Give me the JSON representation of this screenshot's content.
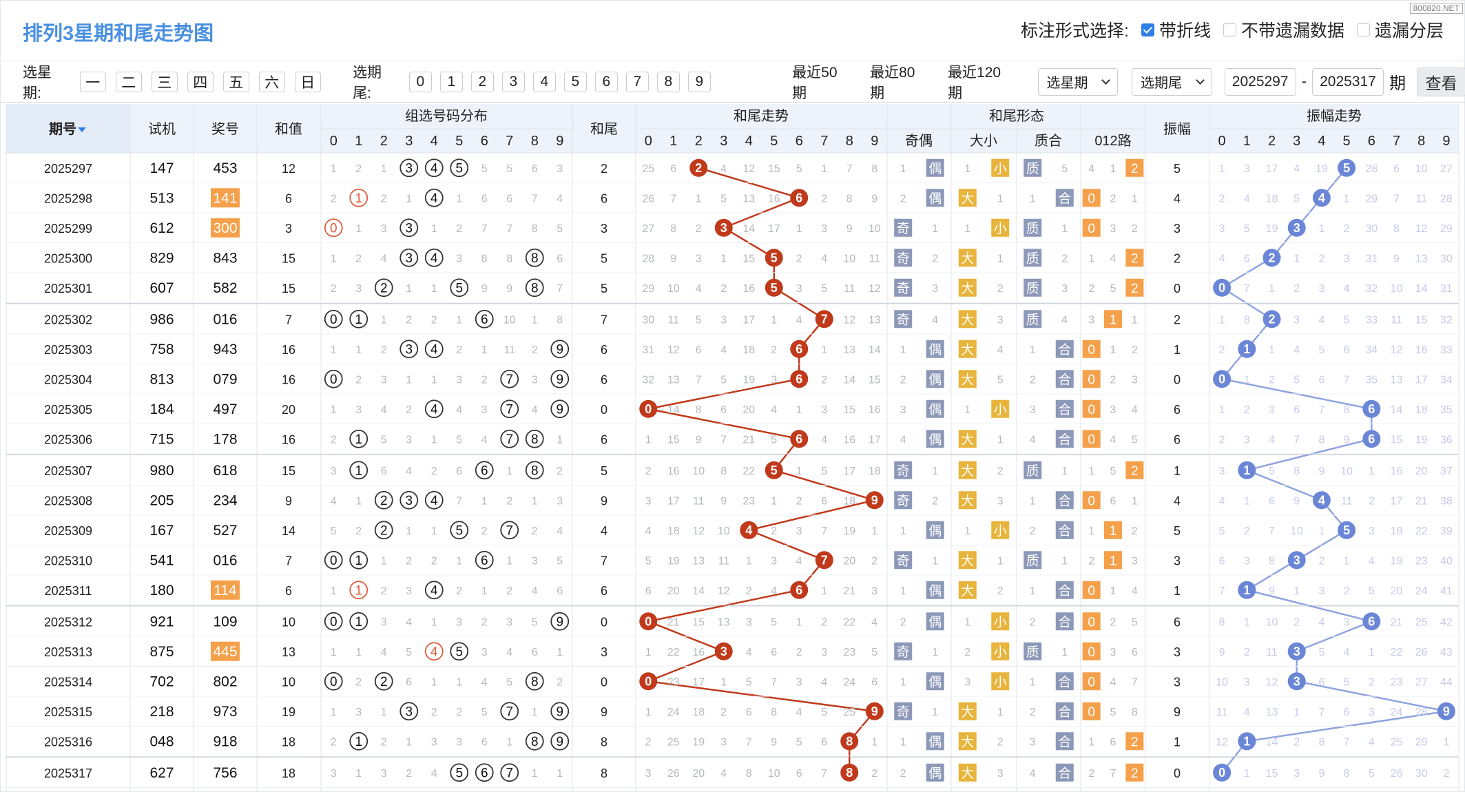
{
  "title": "排列3星期和尾走势图",
  "watermark": "800820.NET",
  "options": {
    "label": "标注形式选择:",
    "items": [
      {
        "label": "带折线",
        "checked": true
      },
      {
        "label": "不带遗漏数据",
        "checked": false
      },
      {
        "label": "遗漏分层",
        "checked": false
      }
    ]
  },
  "filters": {
    "week_label": "选星期:",
    "weekdays": [
      "一",
      "二",
      "三",
      "四",
      "五",
      "六",
      "日"
    ],
    "tail_label": "选期尾:",
    "tails": [
      "0",
      "1",
      "2",
      "3",
      "4",
      "5",
      "6",
      "7",
      "8",
      "9"
    ],
    "ranges": [
      "最近50期",
      "最近80期",
      "最近120期"
    ],
    "select_week": "选星期",
    "select_tail": "选期尾",
    "from": "2025297",
    "sep": "-",
    "to": "2025317",
    "unit": "期",
    "query": "查看"
  },
  "headers": {
    "period": "期号",
    "trial": "试机",
    "award": "奖号",
    "sum": "和值",
    "group_dist": "组选号码分布",
    "tail": "和尾",
    "tail_trend": "和尾走势",
    "tail_form": "和尾形态",
    "oddeven": "奇偶",
    "bigsmall": "大小",
    "prime": "质合",
    "r012": "012路",
    "amp": "振幅",
    "amp_trend": "振幅走势",
    "digits": [
      "0",
      "1",
      "2",
      "3",
      "4",
      "5",
      "6",
      "7",
      "8",
      "9"
    ]
  },
  "labels": {
    "odd": "奇",
    "even": "偶",
    "big": "大",
    "small": "小",
    "prime": "质",
    "comp": "合",
    "r0": "0",
    "r1": "1",
    "r2": "2"
  },
  "colors": {
    "red": "#c0391b",
    "blue": "#6b86d6",
    "orange": "#f5a04a",
    "header_bg": "#eef3fb",
    "line": "#c0391b",
    "line_blue": "#8fa3e0"
  },
  "rows": [
    {
      "p": "2025297",
      "t": "147",
      "a": "453",
      "s": "12",
      "d": [
        "1",
        "2",
        "1",
        "●",
        "●",
        "●",
        "5",
        "5",
        "6",
        "3"
      ],
      "w": "2",
      "tr": [
        "25",
        "6",
        "●",
        "4",
        "12",
        "15",
        "5",
        "1",
        "7",
        "8"
      ],
      "oe": [
        "1",
        "偶"
      ],
      "bs": [
        "1",
        "小"
      ],
      "pc": [
        "质",
        "5"
      ],
      "r": [
        "4",
        "1",
        "2"
      ],
      "amp": "5",
      "at": [
        "1",
        "3",
        "17",
        "4",
        "19",
        "●",
        "28",
        "6",
        "10",
        "27"
      ]
    },
    {
      "p": "2025298",
      "t": "513",
      "a": "141",
      "s": "6",
      "d": [
        "2",
        "●",
        "2",
        "1",
        "●",
        "1",
        "6",
        "6",
        "7",
        "4"
      ],
      "w": "6",
      "tr": [
        "26",
        "7",
        "1",
        "5",
        "13",
        "16",
        "●",
        "2",
        "8",
        "9"
      ],
      "oe": [
        "2",
        "偶"
      ],
      "bs": [
        "大",
        "1"
      ],
      "pc": [
        "1",
        "合"
      ],
      "r": [
        "0",
        "2",
        "1"
      ],
      "amp": "4",
      "at": [
        "2",
        "4",
        "18",
        "5",
        "●",
        "1",
        "29",
        "7",
        "11",
        "28"
      ]
    },
    {
      "p": "2025299",
      "t": "612",
      "a": "300",
      "s": "3",
      "d": [
        "●",
        "1",
        "3",
        "●",
        "1",
        "2",
        "7",
        "7",
        "8",
        "5"
      ],
      "w": "3",
      "tr": [
        "27",
        "8",
        "2",
        "●",
        "14",
        "17",
        "1",
        "3",
        "9",
        "10"
      ],
      "oe": [
        "奇",
        "1"
      ],
      "bs": [
        "1",
        "小"
      ],
      "pc": [
        "质",
        "1"
      ],
      "r": [
        "0",
        "3",
        "2"
      ],
      "amp": "3",
      "at": [
        "3",
        "5",
        "19",
        "●",
        "1",
        "2",
        "30",
        "8",
        "12",
        "29"
      ]
    },
    {
      "p": "2025300",
      "t": "829",
      "a": "843",
      "s": "15",
      "d": [
        "1",
        "2",
        "4",
        "●",
        "●",
        "3",
        "8",
        "8",
        "●",
        "6"
      ],
      "w": "5",
      "tr": [
        "28",
        "9",
        "3",
        "1",
        "15",
        "●",
        "2",
        "4",
        "10",
        "11"
      ],
      "oe": [
        "奇",
        "2"
      ],
      "bs": [
        "大",
        "1"
      ],
      "pc": [
        "质",
        "2"
      ],
      "r": [
        "1",
        "4",
        "2"
      ],
      "amp": "2",
      "at": [
        "4",
        "6",
        "●",
        "1",
        "2",
        "3",
        "31",
        "9",
        "13",
        "30"
      ]
    },
    {
      "p": "2025301",
      "t": "607",
      "a": "582",
      "s": "15",
      "d": [
        "2",
        "3",
        "●",
        "1",
        "1",
        "●",
        "9",
        "9",
        "●",
        "7"
      ],
      "w": "5",
      "tr": [
        "29",
        "10",
        "4",
        "2",
        "16",
        "●",
        "3",
        "5",
        "11",
        "12"
      ],
      "oe": [
        "奇",
        "3"
      ],
      "bs": [
        "大",
        "2"
      ],
      "pc": [
        "质",
        "3"
      ],
      "r": [
        "2",
        "5",
        "2"
      ],
      "amp": "0",
      "at": [
        "●",
        "7",
        "1",
        "2",
        "3",
        "4",
        "32",
        "10",
        "14",
        "31"
      ]
    },
    {
      "p": "2025302",
      "t": "986",
      "a": "016",
      "s": "7",
      "d": [
        "●",
        "●",
        "1",
        "2",
        "2",
        "1",
        "●",
        "10",
        "1",
        "8"
      ],
      "w": "7",
      "tr": [
        "30",
        "11",
        "5",
        "3",
        "17",
        "1",
        "4",
        "●",
        "12",
        "13"
      ],
      "oe": [
        "奇",
        "4"
      ],
      "bs": [
        "大",
        "3"
      ],
      "pc": [
        "质",
        "4"
      ],
      "r": [
        "3",
        "1",
        "1"
      ],
      "amp": "2",
      "at": [
        "1",
        "8",
        "●",
        "3",
        "4",
        "5",
        "33",
        "11",
        "15",
        "32"
      ]
    },
    {
      "p": "2025303",
      "t": "758",
      "a": "943",
      "s": "16",
      "d": [
        "1",
        "1",
        "2",
        "●",
        "●",
        "2",
        "1",
        "11",
        "2",
        "●"
      ],
      "w": "6",
      "tr": [
        "31",
        "12",
        "6",
        "4",
        "18",
        "2",
        "●",
        "1",
        "13",
        "14"
      ],
      "oe": [
        "1",
        "偶"
      ],
      "bs": [
        "大",
        "4"
      ],
      "pc": [
        "1",
        "合"
      ],
      "r": [
        "0",
        "1",
        "2"
      ],
      "amp": "1",
      "at": [
        "2",
        "●",
        "1",
        "4",
        "5",
        "6",
        "34",
        "12",
        "16",
        "33"
      ]
    },
    {
      "p": "2025304",
      "t": "813",
      "a": "079",
      "s": "16",
      "d": [
        "●",
        "2",
        "3",
        "1",
        "1",
        "3",
        "2",
        "●",
        "3",
        "●"
      ],
      "w": "6",
      "tr": [
        "32",
        "13",
        "7",
        "5",
        "19",
        "3",
        "●",
        "2",
        "14",
        "15"
      ],
      "oe": [
        "2",
        "偶"
      ],
      "bs": [
        "大",
        "5"
      ],
      "pc": [
        "2",
        "合"
      ],
      "r": [
        "0",
        "2",
        "3"
      ],
      "amp": "0",
      "at": [
        "●",
        "1",
        "2",
        "5",
        "6",
        "7",
        "35",
        "13",
        "17",
        "34"
      ]
    },
    {
      "p": "2025305",
      "t": "184",
      "a": "497",
      "s": "20",
      "d": [
        "1",
        "3",
        "4",
        "2",
        "●",
        "4",
        "3",
        "●",
        "4",
        "●"
      ],
      "w": "0",
      "tr": [
        "●",
        "14",
        "8",
        "6",
        "20",
        "4",
        "1",
        "3",
        "15",
        "16"
      ],
      "oe": [
        "3",
        "偶"
      ],
      "bs": [
        "1",
        "小"
      ],
      "pc": [
        "3",
        "合"
      ],
      "r": [
        "0",
        "3",
        "4"
      ],
      "amp": "6",
      "at": [
        "1",
        "2",
        "3",
        "6",
        "7",
        "8",
        "●",
        "14",
        "18",
        "35"
      ]
    },
    {
      "p": "2025306",
      "t": "715",
      "a": "178",
      "s": "16",
      "d": [
        "2",
        "●",
        "5",
        "3",
        "1",
        "5",
        "4",
        "●",
        "●",
        "1"
      ],
      "w": "6",
      "tr": [
        "1",
        "15",
        "9",
        "7",
        "21",
        "5",
        "●",
        "4",
        "16",
        "17"
      ],
      "oe": [
        "4",
        "偶"
      ],
      "bs": [
        "大",
        "1"
      ],
      "pc": [
        "4",
        "合"
      ],
      "r": [
        "0",
        "4",
        "5"
      ],
      "amp": "6",
      "at": [
        "2",
        "3",
        "4",
        "7",
        "8",
        "9",
        "●",
        "15",
        "19",
        "36"
      ]
    },
    {
      "p": "2025307",
      "t": "980",
      "a": "618",
      "s": "15",
      "d": [
        "3",
        "●",
        "6",
        "4",
        "2",
        "6",
        "●",
        "1",
        "●",
        "2"
      ],
      "w": "5",
      "tr": [
        "2",
        "16",
        "10",
        "8",
        "22",
        "●",
        "1",
        "5",
        "17",
        "18"
      ],
      "oe": [
        "奇",
        "1"
      ],
      "bs": [
        "大",
        "2"
      ],
      "pc": [
        "质",
        "1"
      ],
      "r": [
        "1",
        "5",
        "2"
      ],
      "amp": "1",
      "at": [
        "3",
        "●",
        "5",
        "8",
        "9",
        "10",
        "1",
        "16",
        "20",
        "37"
      ]
    },
    {
      "p": "2025308",
      "t": "205",
      "a": "234",
      "s": "9",
      "d": [
        "4",
        "1",
        "●",
        "●",
        "●",
        "7",
        "1",
        "2",
        "1",
        "3"
      ],
      "w": "9",
      "tr": [
        "3",
        "17",
        "11",
        "9",
        "23",
        "1",
        "2",
        "6",
        "18",
        "●"
      ],
      "oe": [
        "奇",
        "2"
      ],
      "bs": [
        "大",
        "3"
      ],
      "pc": [
        "1",
        "合"
      ],
      "r": [
        "0",
        "6",
        "1"
      ],
      "amp": "4",
      "at": [
        "4",
        "1",
        "6",
        "9",
        "●",
        "11",
        "2",
        "17",
        "21",
        "38"
      ]
    },
    {
      "p": "2025309",
      "t": "167",
      "a": "527",
      "s": "14",
      "d": [
        "5",
        "2",
        "●",
        "1",
        "1",
        "●",
        "2",
        "●",
        "2",
        "4"
      ],
      "w": "4",
      "tr": [
        "4",
        "18",
        "12",
        "10",
        "●",
        "2",
        "3",
        "7",
        "19",
        "1"
      ],
      "oe": [
        "1",
        "偶"
      ],
      "bs": [
        "1",
        "小"
      ],
      "pc": [
        "2",
        "合"
      ],
      "r": [
        "1",
        "1",
        "2"
      ],
      "amp": "5",
      "at": [
        "5",
        "2",
        "7",
        "10",
        "1",
        "●",
        "3",
        "18",
        "22",
        "39"
      ]
    },
    {
      "p": "2025310",
      "t": "541",
      "a": "016",
      "s": "7",
      "d": [
        "●",
        "●",
        "1",
        "2",
        "2",
        "1",
        "●",
        "1",
        "3",
        "5"
      ],
      "w": "7",
      "tr": [
        "5",
        "19",
        "13",
        "11",
        "1",
        "3",
        "4",
        "●",
        "20",
        "2"
      ],
      "oe": [
        "奇",
        "1"
      ],
      "bs": [
        "大",
        "1"
      ],
      "pc": [
        "质",
        "1"
      ],
      "r": [
        "2",
        "1",
        "3"
      ],
      "amp": "3",
      "at": [
        "6",
        "3",
        "8",
        "●",
        "2",
        "1",
        "4",
        "19",
        "23",
        "40"
      ]
    },
    {
      "p": "2025311",
      "t": "180",
      "a": "114",
      "s": "6",
      "d": [
        "1",
        "●",
        "2",
        "3",
        "●",
        "2",
        "1",
        "2",
        "4",
        "6"
      ],
      "w": "6",
      "tr": [
        "6",
        "20",
        "14",
        "12",
        "2",
        "4",
        "●",
        "1",
        "21",
        "3"
      ],
      "oe": [
        "1",
        "偶"
      ],
      "bs": [
        "大",
        "2"
      ],
      "pc": [
        "1",
        "合"
      ],
      "r": [
        "0",
        "1",
        "4"
      ],
      "amp": "1",
      "at": [
        "7",
        "●",
        "9",
        "1",
        "3",
        "2",
        "5",
        "20",
        "24",
        "41"
      ]
    },
    {
      "p": "2025312",
      "t": "921",
      "a": "109",
      "s": "10",
      "d": [
        "●",
        "●",
        "3",
        "4",
        "1",
        "3",
        "2",
        "3",
        "5",
        "●"
      ],
      "w": "0",
      "tr": [
        "●",
        "21",
        "15",
        "13",
        "3",
        "5",
        "1",
        "2",
        "22",
        "4"
      ],
      "oe": [
        "2",
        "偶"
      ],
      "bs": [
        "1",
        "小"
      ],
      "pc": [
        "2",
        "合"
      ],
      "r": [
        "0",
        "2",
        "5"
      ],
      "amp": "6",
      "at": [
        "8",
        "1",
        "10",
        "2",
        "4",
        "3",
        "●",
        "21",
        "25",
        "42"
      ]
    },
    {
      "p": "2025313",
      "t": "875",
      "a": "445",
      "s": "13",
      "d": [
        "1",
        "1",
        "4",
        "5",
        "●",
        "●",
        "3",
        "4",
        "6",
        "1"
      ],
      "w": "3",
      "tr": [
        "1",
        "22",
        "16",
        "●",
        "4",
        "6",
        "2",
        "3",
        "23",
        "5"
      ],
      "oe": [
        "奇",
        "1"
      ],
      "bs": [
        "2",
        "小"
      ],
      "pc": [
        "质",
        "1"
      ],
      "r": [
        "0",
        "3",
        "6"
      ],
      "amp": "3",
      "at": [
        "9",
        "2",
        "11",
        "●",
        "5",
        "4",
        "1",
        "22",
        "26",
        "43"
      ]
    },
    {
      "p": "2025314",
      "t": "702",
      "a": "802",
      "s": "10",
      "d": [
        "●",
        "2",
        "●",
        "6",
        "1",
        "1",
        "4",
        "5",
        "●",
        "2"
      ],
      "w": "0",
      "tr": [
        "●",
        "23",
        "17",
        "1",
        "5",
        "7",
        "3",
        "4",
        "24",
        "6"
      ],
      "oe": [
        "1",
        "偶"
      ],
      "bs": [
        "3",
        "小"
      ],
      "pc": [
        "1",
        "合"
      ],
      "r": [
        "0",
        "4",
        "7"
      ],
      "amp": "3",
      "at": [
        "10",
        "3",
        "12",
        "●",
        "6",
        "5",
        "2",
        "23",
        "27",
        "44"
      ]
    },
    {
      "p": "2025315",
      "t": "218",
      "a": "973",
      "s": "19",
      "d": [
        "1",
        "3",
        "1",
        "●",
        "2",
        "2",
        "5",
        "●",
        "1",
        "●"
      ],
      "w": "9",
      "tr": [
        "1",
        "24",
        "18",
        "2",
        "6",
        "8",
        "4",
        "5",
        "25",
        "●"
      ],
      "oe": [
        "奇",
        "1"
      ],
      "bs": [
        "大",
        "1"
      ],
      "pc": [
        "2",
        "合"
      ],
      "r": [
        "0",
        "5",
        "8"
      ],
      "amp": "9",
      "at": [
        "11",
        "4",
        "13",
        "1",
        "7",
        "6",
        "3",
        "24",
        "28",
        "●"
      ]
    },
    {
      "p": "2025316",
      "t": "048",
      "a": "918",
      "s": "18",
      "d": [
        "2",
        "●",
        "2",
        "1",
        "3",
        "3",
        "6",
        "1",
        "●",
        "●"
      ],
      "w": "8",
      "tr": [
        "2",
        "25",
        "19",
        "3",
        "7",
        "9",
        "5",
        "6",
        "●",
        "1"
      ],
      "oe": [
        "1",
        "偶"
      ],
      "bs": [
        "大",
        "2"
      ],
      "pc": [
        "3",
        "合"
      ],
      "r": [
        "1",
        "6",
        "2"
      ],
      "amp": "1",
      "at": [
        "12",
        "●",
        "14",
        "2",
        "8",
        "7",
        "4",
        "25",
        "29",
        "1"
      ]
    },
    {
      "p": "2025317",
      "t": "627",
      "a": "756",
      "s": "18",
      "d": [
        "3",
        "1",
        "3",
        "2",
        "4",
        "●",
        "●",
        "●",
        "1",
        "1"
      ],
      "w": "8",
      "tr": [
        "3",
        "26",
        "20",
        "4",
        "8",
        "10",
        "6",
        "7",
        "●",
        "2"
      ],
      "oe": [
        "2",
        "偶"
      ],
      "bs": [
        "大",
        "3"
      ],
      "pc": [
        "4",
        "合"
      ],
      "r": [
        "2",
        "7",
        "2"
      ],
      "amp": "0",
      "at": [
        "●",
        "1",
        "15",
        "3",
        "9",
        "8",
        "5",
        "26",
        "30",
        "2"
      ]
    }
  ],
  "highlight_award": [
    "2025298",
    "2025299",
    "2025311",
    "2025313"
  ]
}
